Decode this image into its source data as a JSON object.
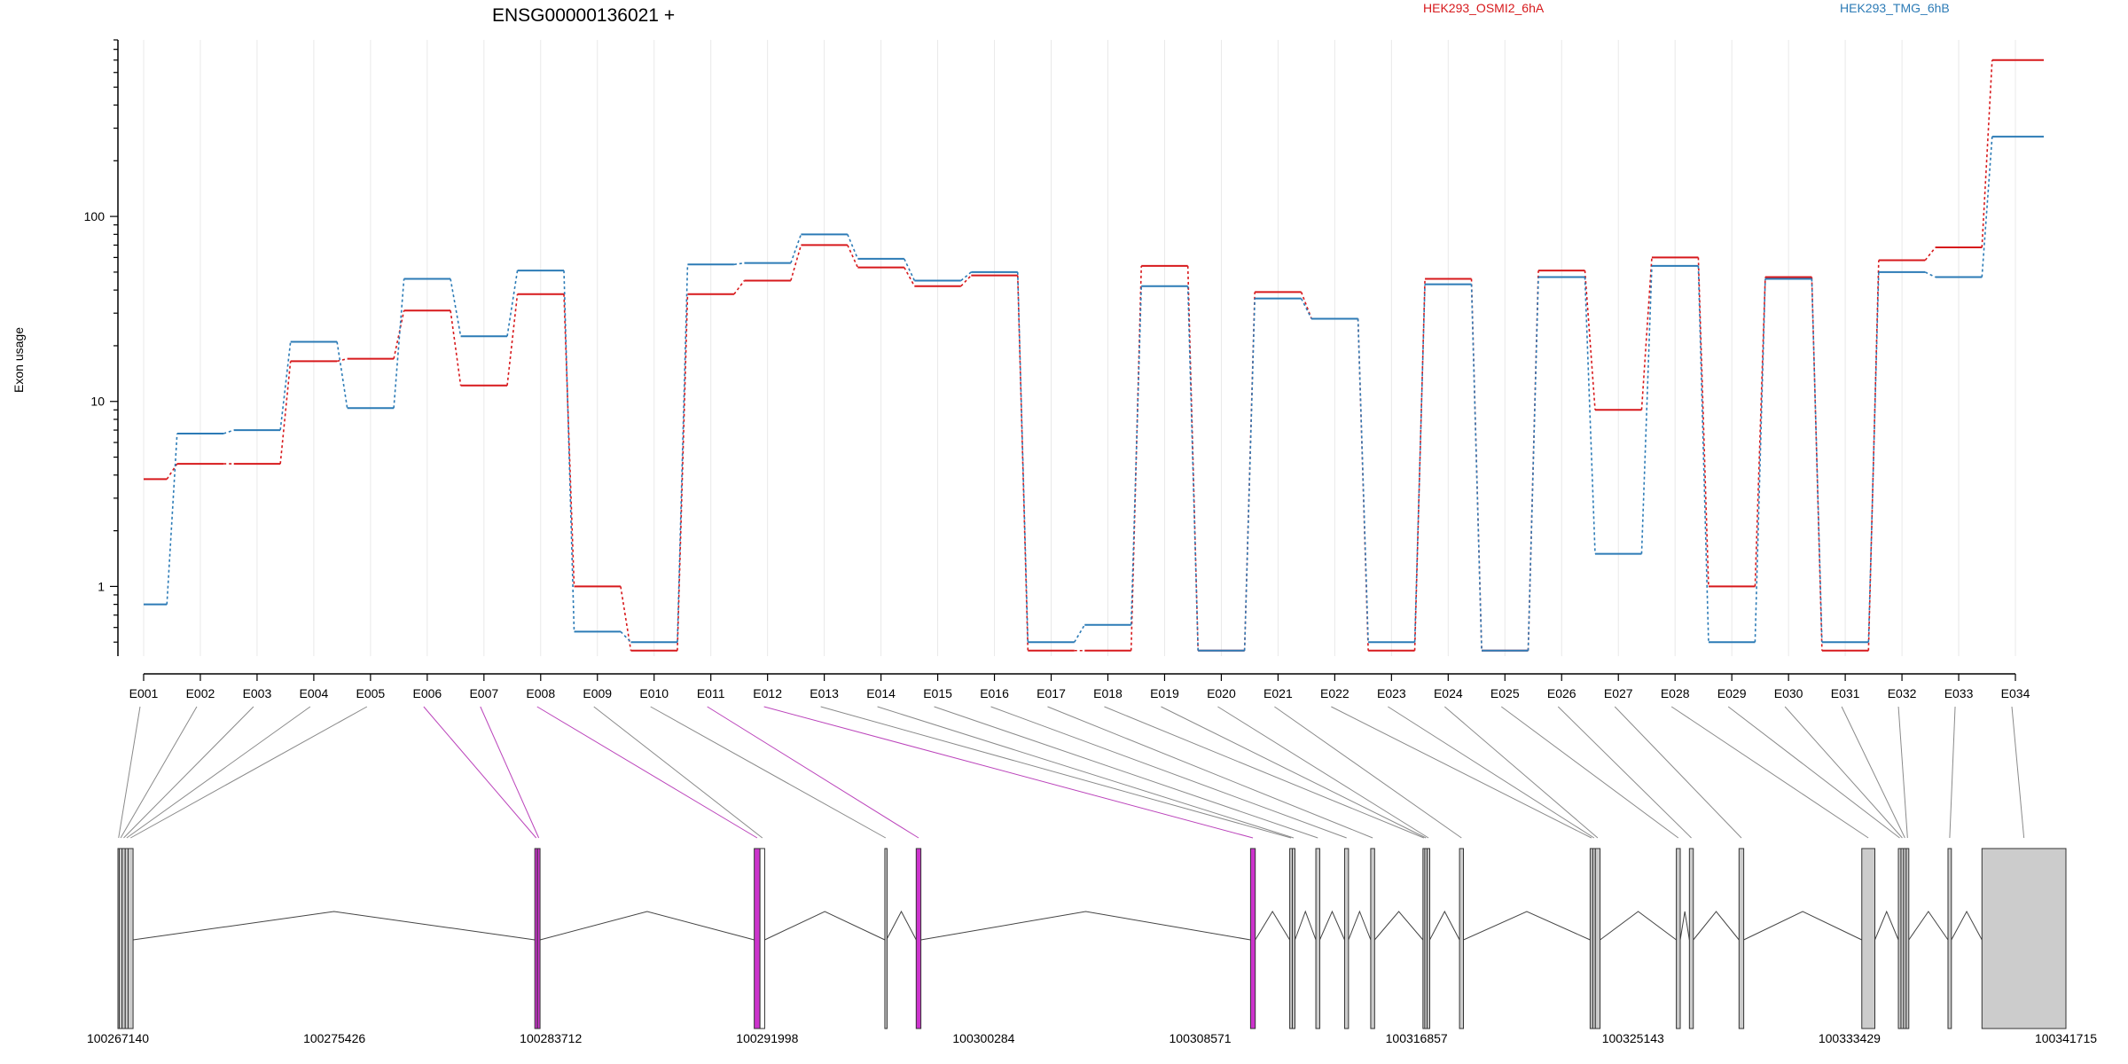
{
  "chart_data": {
    "type": "line",
    "title": "ENSG00000136021 +",
    "ylabel": "Exon usage",
    "yscale": "log",
    "ylim": [
      0.42,
      900
    ],
    "yticks": [
      {
        "value": 1,
        "label": "1"
      },
      {
        "value": 10,
        "label": "10"
      },
      {
        "value": 100,
        "label": "100"
      }
    ],
    "legend": {
      "placement": "top",
      "entries": [
        "HEK293_OSMI2_6hA",
        "HEK293_TMG_6hB"
      ]
    },
    "grid": "vertical",
    "categories": [
      "E001",
      "E002",
      "E003",
      "E004",
      "E005",
      "E006",
      "E007",
      "E008",
      "E009",
      "E010",
      "E011",
      "E012",
      "E013",
      "E014",
      "E015",
      "E016",
      "E017",
      "E018",
      "E019",
      "E020",
      "E021",
      "E022",
      "E023",
      "E024",
      "E025",
      "E026",
      "E027",
      "E028",
      "E029",
      "E030",
      "E031",
      "E032",
      "E033",
      "E034"
    ],
    "series": [
      {
        "name": "HEK293_OSMI2_6hA",
        "color": "#d7191c",
        "values": [
          3.8,
          4.6,
          4.6,
          16.5,
          17,
          31,
          12.2,
          38,
          1,
          0.45,
          38,
          45,
          70,
          53,
          42,
          48,
          0.45,
          0.45,
          54,
          0.45,
          39,
          28,
          0.45,
          46,
          0.45,
          51,
          9,
          60,
          1,
          47,
          0.45,
          58,
          68,
          700
        ]
      },
      {
        "name": "HEK293_TMG_6hB",
        "color": "#2c7bb6",
        "values": [
          0.8,
          6.7,
          7,
          21,
          9.2,
          46,
          22.5,
          51,
          0.57,
          0.5,
          55,
          56,
          80,
          59,
          45,
          50,
          0.5,
          0.62,
          42,
          0.45,
          36,
          28,
          0.5,
          43,
          0.45,
          47,
          1.5,
          54,
          0.5,
          46,
          0.5,
          50,
          47,
          270
        ]
      }
    ],
    "genomic_axis": {
      "labels": [
        "100267140",
        "100275426",
        "100283712",
        "100291998",
        "100300284",
        "100308571",
        "100316857",
        "100325143",
        "100333429",
        "100341715"
      ],
      "start": 100267140,
      "end": 100341715
    },
    "gene_model": {
      "exons": [
        {
          "id": "E001",
          "start": 100267140,
          "end": 100267190,
          "color": "#cccccc"
        },
        {
          "id": "E002",
          "start": 100267190,
          "end": 100267300,
          "color": "#cccccc"
        },
        {
          "id": "E003",
          "start": 100267300,
          "end": 100267420,
          "color": "#cccccc"
        },
        {
          "id": "E004",
          "start": 100267420,
          "end": 100267530,
          "color": "#cccccc"
        },
        {
          "id": "E005",
          "start": 100267530,
          "end": 100267720,
          "color": "#cccccc"
        },
        {
          "id": "E006",
          "start": 100283100,
          "end": 100283200,
          "color": "#cc33cc"
        },
        {
          "id": "E007",
          "start": 100283200,
          "end": 100283300,
          "color": "#cc33cc"
        },
        {
          "id": "E008",
          "start": 100291500,
          "end": 100291720,
          "color": "#cc33cc"
        },
        {
          "id": "E009",
          "start": 100291720,
          "end": 100291900,
          "color": "#ffffff"
        },
        {
          "id": "E010",
          "start": 100296500,
          "end": 100296560,
          "color": "#cccccc"
        },
        {
          "id": "E011",
          "start": 100297700,
          "end": 100297880,
          "color": "#cc33cc"
        },
        {
          "id": "E012",
          "start": 100310500,
          "end": 100310680,
          "color": "#cc33cc"
        },
        {
          "id": "E013",
          "start": 100312000,
          "end": 100312100,
          "color": "#cccccc"
        },
        {
          "id": "E014",
          "start": 100312100,
          "end": 100312200,
          "color": "#cccccc"
        },
        {
          "id": "E015",
          "start": 100313000,
          "end": 100313150,
          "color": "#cccccc"
        },
        {
          "id": "E016",
          "start": 100314100,
          "end": 100314250,
          "color": "#cccccc"
        },
        {
          "id": "E017",
          "start": 100315100,
          "end": 100315250,
          "color": "#cccccc"
        },
        {
          "id": "E018",
          "start": 100317100,
          "end": 100317170,
          "color": "#cccccc"
        },
        {
          "id": "E019",
          "start": 100317170,
          "end": 100317260,
          "color": "#cccccc"
        },
        {
          "id": "E020",
          "start": 100317260,
          "end": 100317360,
          "color": "#cccccc"
        },
        {
          "id": "E021",
          "start": 100318500,
          "end": 100318650,
          "color": "#cccccc"
        },
        {
          "id": "E022",
          "start": 100323500,
          "end": 100323600,
          "color": "#cccccc"
        },
        {
          "id": "E023",
          "start": 100323600,
          "end": 100323700,
          "color": "#cccccc"
        },
        {
          "id": "E024",
          "start": 100323700,
          "end": 100323880,
          "color": "#cccccc"
        },
        {
          "id": "E025",
          "start": 100326800,
          "end": 100326950,
          "color": "#cccccc"
        },
        {
          "id": "E026",
          "start": 100327300,
          "end": 100327450,
          "color": "#cccccc"
        },
        {
          "id": "E027",
          "start": 100329200,
          "end": 100329380,
          "color": "#cccccc"
        },
        {
          "id": "E028",
          "start": 100333900,
          "end": 100334400,
          "color": "#cccccc"
        },
        {
          "id": "E029",
          "start": 100335300,
          "end": 100335400,
          "color": "#cccccc"
        },
        {
          "id": "E030",
          "start": 100335400,
          "end": 100335500,
          "color": "#cccccc"
        },
        {
          "id": "E031",
          "start": 100335500,
          "end": 100335600,
          "color": "#cccccc"
        },
        {
          "id": "E032",
          "start": 100335600,
          "end": 100335700,
          "color": "#cccccc"
        },
        {
          "id": "E033",
          "start": 100337200,
          "end": 100337330,
          "color": "#cccccc"
        },
        {
          "id": "E034",
          "start": 100338500,
          "end": 100341715,
          "color": "#cccccc"
        }
      ]
    }
  }
}
